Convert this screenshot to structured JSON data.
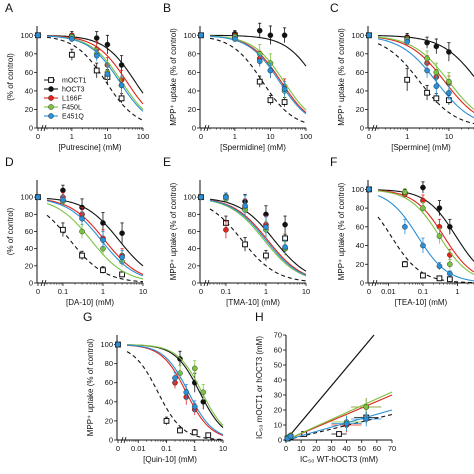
{
  "series_styles": {
    "mOCT1": {
      "color": "#111111",
      "dash": "4,3",
      "marker": "open-square"
    },
    "hOCT3": {
      "color": "#111111",
      "dash": "",
      "marker": "filled-circle"
    },
    "L166F": {
      "color": "#e0241b",
      "dash": "",
      "marker": "filled-circle"
    },
    "F450L": {
      "color": "#7cc242",
      "dash": "",
      "marker": "filled-circle"
    },
    "E451Q": {
      "color": "#2a8fd6",
      "dash": "",
      "marker": "filled-circle"
    }
  },
  "legend": [
    "mOCT1",
    "hOCT3",
    "L166F",
    "F450L",
    "E451Q"
  ],
  "chart_data": [
    {
      "type": "line",
      "panel": "A",
      "xscale": "log",
      "xlim": [
        0.2,
        100
      ],
      "ylim": [
        0,
        110
      ],
      "xticks": [
        "0",
        "1",
        "10",
        "100"
      ],
      "yticks": [
        "0",
        "20",
        "40",
        "60",
        "80",
        "100"
      ],
      "xlabel": "[Putrescine] (mM)",
      "ylabel": "(% of control)",
      "show_legend": true,
      "series": [
        {
          "name": "mOCT1",
          "x": [
            1,
            5,
            10,
            25
          ],
          "y": [
            79,
            62,
            55,
            32
          ],
          "err": [
            6,
            8,
            8,
            5
          ],
          "ic50": 9
        },
        {
          "name": "hOCT3",
          "x": [
            1,
            5,
            10,
            25
          ],
          "y": [
            100,
            97,
            90,
            68
          ],
          "err": [
            4,
            7,
            10,
            10
          ],
          "ic50": 60
        },
        {
          "name": "L166F",
          "x": [
            1,
            5,
            10,
            25
          ],
          "y": [
            99,
            85,
            68,
            52
          ],
          "err": [
            3,
            8,
            8,
            10
          ],
          "ic50": 35
        },
        {
          "name": "F450L",
          "x": [
            1,
            5,
            10,
            25
          ],
          "y": [
            98,
            80,
            60,
            46
          ],
          "err": [
            3,
            6,
            8,
            8
          ],
          "ic50": 25
        },
        {
          "name": "E451Q",
          "x": [
            1,
            5,
            10,
            25
          ],
          "y": [
            96,
            78,
            58,
            46
          ],
          "err": [
            3,
            6,
            8,
            10
          ],
          "ic50": 22
        }
      ]
    },
    {
      "type": "line",
      "panel": "B",
      "xscale": "log",
      "xlim": [
        0.2,
        100
      ],
      "ylim": [
        0,
        110
      ],
      "xticks": [
        "0",
        "1",
        "10",
        "100"
      ],
      "yticks": [
        "0",
        "20",
        "40",
        "60",
        "80",
        "100"
      ],
      "xlabel": "[Spermidine] (mM)",
      "ylabel": "MPP⁺ uptake (% of control)",
      "series": [
        {
          "name": "mOCT1",
          "x": [
            1,
            5,
            10,
            25
          ],
          "y": [
            100,
            50,
            30,
            28
          ],
          "err": [
            4,
            6,
            5,
            5
          ],
          "ic50": 6
        },
        {
          "name": "hOCT3",
          "x": [
            1,
            5,
            10,
            25
          ],
          "y": [
            101,
            105,
            100,
            100
          ],
          "err": [
            4,
            8,
            10,
            8
          ],
          "ic50": 200
        },
        {
          "name": "L166F",
          "x": [
            1,
            5,
            10,
            25
          ],
          "y": [
            99,
            75,
            62,
            45
          ],
          "err": [
            3,
            8,
            8,
            8
          ],
          "ic50": 20
        },
        {
          "name": "F450L",
          "x": [
            1,
            5,
            10,
            25
          ],
          "y": [
            98,
            80,
            70,
            40
          ],
          "err": [
            3,
            10,
            10,
            8
          ],
          "ic50": 24
        },
        {
          "name": "E451Q",
          "x": [
            1,
            5,
            10,
            25
          ],
          "y": [
            96,
            72,
            62,
            42
          ],
          "err": [
            3,
            6,
            8,
            8
          ],
          "ic50": 18
        }
      ]
    },
    {
      "type": "line",
      "panel": "C",
      "xscale": "log",
      "xlim": [
        0.2,
        40
      ],
      "ylim": [
        0,
        110
      ],
      "xticks": [
        "0",
        "1",
        "10"
      ],
      "yticks": [
        "0",
        "20",
        "40",
        "60",
        "80",
        "100"
      ],
      "xlabel": "[Spermine] (mM)",
      "ylabel": "MPP⁺ uptake (% of control)",
      "series": [
        {
          "name": "mOCT1",
          "x": [
            1,
            3,
            5,
            10
          ],
          "y": [
            52,
            38,
            32,
            30
          ],
          "err": [
            12,
            8,
            5,
            5
          ],
          "ic50": 2
        },
        {
          "name": "hOCT3",
          "x": [
            1,
            3,
            5,
            10
          ],
          "y": [
            98,
            92,
            88,
            82
          ],
          "err": [
            4,
            6,
            8,
            10
          ],
          "ic50": 50
        },
        {
          "name": "L166F",
          "x": [
            1,
            3,
            5,
            10
          ],
          "y": [
            96,
            70,
            55,
            48
          ],
          "err": [
            3,
            8,
            8,
            8
          ],
          "ic50": 8
        },
        {
          "name": "F450L",
          "x": [
            1,
            3,
            5,
            10
          ],
          "y": [
            95,
            75,
            60,
            50
          ],
          "err": [
            3,
            8,
            10,
            10
          ],
          "ic50": 10
        },
        {
          "name": "E451Q",
          "x": [
            1,
            3,
            5,
            10
          ],
          "y": [
            93,
            62,
            45,
            38
          ],
          "err": [
            3,
            8,
            10,
            8
          ],
          "ic50": 5
        }
      ]
    },
    {
      "type": "line",
      "panel": "D",
      "xscale": "log",
      "xlim": [
        0.04,
        10
      ],
      "ylim": [
        0,
        120
      ],
      "xticks": [
        "0",
        "0.1",
        "1",
        "10"
      ],
      "yticks": [
        "0",
        "20",
        "40",
        "60",
        "80",
        "100"
      ],
      "xlabel": "[DA-10] (mM)",
      "ylabel": "(% of control)",
      "series": [
        {
          "name": "mOCT1",
          "x": [
            0.1,
            0.3,
            1,
            3
          ],
          "y": [
            62,
            32,
            15,
            10
          ],
          "err": [
            8,
            5,
            4,
            3
          ],
          "ic50": 0.15
        },
        {
          "name": "hOCT3",
          "x": [
            0.1,
            0.3,
            1,
            3
          ],
          "y": [
            108,
            88,
            70,
            58
          ],
          "err": [
            6,
            10,
            12,
            12
          ],
          "ic50": 2.5
        },
        {
          "name": "L166F",
          "x": [
            0.1,
            0.3,
            1,
            3
          ],
          "y": [
            100,
            80,
            52,
            32
          ],
          "err": [
            5,
            8,
            10,
            8
          ],
          "ic50": 1.1
        },
        {
          "name": "F450L",
          "x": [
            0.1,
            0.3,
            1,
            3
          ],
          "y": [
            95,
            60,
            40,
            25
          ],
          "err": [
            5,
            8,
            8,
            6
          ],
          "ic50": 0.5
        },
        {
          "name": "E451Q",
          "x": [
            0.1,
            0.3,
            1,
            3
          ],
          "y": [
            97,
            75,
            50,
            30
          ],
          "err": [
            5,
            8,
            10,
            8
          ],
          "ic50": 0.9
        }
      ]
    },
    {
      "type": "line",
      "panel": "E",
      "xscale": "log",
      "xlim": [
        0.04,
        10
      ],
      "ylim": [
        0,
        120
      ],
      "xticks": [
        "0",
        "0.1",
        "1",
        "10"
      ],
      "yticks": [
        "0",
        "20",
        "40",
        "60",
        "80",
        "100"
      ],
      "xlabel": "[TMA-10] (mM)",
      "ylabel": "MPP⁺ uptake (% of control)",
      "series": [
        {
          "name": "mOCT1",
          "x": [
            0.1,
            0.3,
            1,
            3
          ],
          "y": [
            70,
            45,
            32,
            52
          ],
          "err": [
            8,
            8,
            6,
            5
          ],
          "ic50": 0.25
        },
        {
          "name": "hOCT3",
          "x": [
            0.1,
            0.3,
            1,
            3
          ],
          "y": [
            101,
            95,
            80,
            68
          ],
          "err": [
            4,
            8,
            10,
            10
          ],
          "ic50": 1.6
        },
        {
          "name": "L166F",
          "x": [
            0.1,
            0.3,
            1,
            3
          ],
          "y": [
            62,
            88,
            68,
            40
          ],
          "err": [
            10,
            10,
            10,
            8
          ],
          "ic50": 1.1
        },
        {
          "name": "F450L",
          "x": [
            0.1,
            0.3,
            1,
            3
          ],
          "y": [
            98,
            85,
            62,
            40
          ],
          "err": [
            5,
            8,
            10,
            8
          ],
          "ic50": 0.9
        },
        {
          "name": "E451Q",
          "x": [
            0.1,
            0.3,
            1,
            3
          ],
          "y": [
            100,
            90,
            65,
            42
          ],
          "err": [
            5,
            12,
            12,
            8
          ],
          "ic50": 1.0
        }
      ]
    },
    {
      "type": "line",
      "panel": "F",
      "xscale": "log",
      "xlim": [
        0.005,
        3
      ],
      "ylim": [
        0,
        110
      ],
      "xticks": [
        "0",
        "0.01",
        "0.1",
        "1"
      ],
      "yticks": [
        "0",
        "20",
        "40",
        "60",
        "80",
        "100"
      ],
      "xlabel": "[TEA-10] (mM)",
      "ylabel": "MPP⁺ uptake (% of control)",
      "series": [
        {
          "name": "mOCT1",
          "x": [
            0.03,
            0.1,
            0.3,
            0.6
          ],
          "y": [
            20,
            8,
            5,
            4
          ],
          "err": [
            3,
            2,
            2,
            2
          ],
          "ic50": 0.012
        },
        {
          "name": "hOCT3",
          "x": [
            0.03,
            0.1,
            0.3,
            0.6
          ],
          "y": [
            96,
            102,
            80,
            60
          ],
          "err": [
            4,
            6,
            8,
            8
          ],
          "ic50": 0.9
        },
        {
          "name": "L166F",
          "x": [
            0.03,
            0.1,
            0.3,
            0.6
          ],
          "y": [
            95,
            88,
            60,
            30
          ],
          "err": [
            4,
            6,
            8,
            6
          ],
          "ic50": 0.4
        },
        {
          "name": "F450L",
          "x": [
            0.03,
            0.1,
            0.3,
            0.6
          ],
          "y": [
            97,
            80,
            50,
            20
          ],
          "err": [
            4,
            6,
            8,
            5
          ],
          "ic50": 0.3
        },
        {
          "name": "E451Q",
          "x": [
            0.03,
            0.1,
            0.3,
            0.6
          ],
          "y": [
            60,
            40,
            18,
            10
          ],
          "err": [
            8,
            8,
            4,
            3
          ],
          "ic50": 0.07
        }
      ]
    },
    {
      "type": "line",
      "panel": "G",
      "xscale": "log",
      "xlim": [
        0.004,
        10
      ],
      "ylim": [
        0,
        110
      ],
      "xticks": [
        "0",
        "0.01",
        "0.1",
        "1",
        "10"
      ],
      "yticks": [
        "0",
        "20",
        "40",
        "60",
        "80",
        "100"
      ],
      "xlabel": "[Quin-10] (mM)",
      "ylabel": "MPP⁺ uptake (% of control)",
      "series": [
        {
          "name": "mOCT1",
          "x": [
            0.1,
            0.3,
            1,
            3
          ],
          "y": [
            20,
            10,
            8,
            5
          ],
          "err": [
            4,
            3,
            3,
            2
          ],
          "ic50": 0.05
        },
        {
          "name": "hOCT3",
          "x": [
            0.3,
            1,
            2
          ],
          "y": [
            85,
            60,
            40
          ],
          "err": [
            8,
            10,
            8
          ],
          "ic50": 1.5
        },
        {
          "name": "L166F",
          "x": [
            0.2,
            0.5,
            1
          ],
          "y": [
            60,
            45,
            32
          ],
          "err": [
            6,
            8,
            6
          ],
          "ic50": 0.5
        },
        {
          "name": "F450L",
          "x": [
            0.3,
            1,
            2
          ],
          "y": [
            70,
            75,
            50
          ],
          "err": [
            8,
            8,
            8
          ],
          "ic50": 1.8
        },
        {
          "name": "E451Q",
          "x": [
            0.2,
            0.5,
            1
          ],
          "y": [
            65,
            50,
            35
          ],
          "err": [
            6,
            8,
            6
          ],
          "ic50": 0.6
        }
      ]
    },
    {
      "type": "scatter",
      "panel": "H",
      "xlim": [
        0,
        70
      ],
      "ylim": [
        0,
        70
      ],
      "xticks": [
        "0",
        "10",
        "20",
        "30",
        "40",
        "50",
        "60",
        "70"
      ],
      "yticks": [
        "0",
        "10",
        "20",
        "30",
        "40",
        "50",
        "60",
        "70"
      ],
      "xlabel": "IC₅₀ WT-hOCT3 (mM)",
      "ylabel": "IC₅₀ mOCT1 or hOCT3 (mM)",
      "identity_line": true,
      "series": [
        {
          "name": "mOCT1",
          "points": [
            [
              1,
              1,
              1,
              0.5
            ],
            [
              3,
              2,
              1,
              1
            ],
            [
              12,
              4,
              2,
              1
            ],
            [
              35,
              4,
              5,
              1.5
            ],
            [
              53,
              15,
              8,
              4
            ]
          ],
          "fit": [
            [
              0,
              0
            ],
            [
              70,
              17
            ]
          ]
        },
        {
          "name": "L166F",
          "points": [
            [
              1,
              1,
              1,
              0.5
            ],
            [
              3,
              3,
              1,
              1
            ],
            [
              40,
              10,
              10,
              5
            ],
            [
              53,
              22,
              10,
              6
            ]
          ],
          "fit": [
            [
              0,
              0
            ],
            [
              70,
              30
            ]
          ]
        },
        {
          "name": "F450L",
          "points": [
            [
              1,
              1.5,
              1,
              0.5
            ],
            [
              3,
              3,
              1,
              1
            ],
            [
              40,
              12,
              10,
              5
            ],
            [
              53,
              22,
              10,
              6
            ]
          ],
          "fit": [
            [
              0,
              0
            ],
            [
              70,
              32
            ]
          ]
        },
        {
          "name": "E451Q",
          "points": [
            [
              1,
              1,
              1,
              0.5
            ],
            [
              3,
              2.5,
              1,
              1
            ],
            [
              40,
              11,
              10,
              5
            ],
            [
              53,
              14,
              10,
              5
            ]
          ],
          "fit": [
            [
              0,
              0
            ],
            [
              70,
              20
            ]
          ]
        }
      ]
    }
  ]
}
